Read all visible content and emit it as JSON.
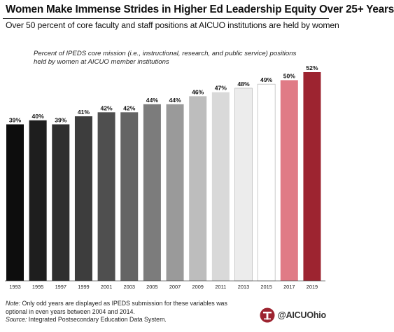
{
  "title": "Women Make Immense Strides in Higher Ed Leadership Equity Over 25+ Years",
  "subtitle": "Over 50 percent of core faculty and staff positions at AICUO institutions are held by women",
  "chart_data": {
    "type": "bar",
    "caption_lines": [
      "Percent of IPEDS core mission (i.e., instructional, research, and public service) positions",
      "held by women at AICUO member institutions"
    ],
    "categories": [
      "1993",
      "1995",
      "1997",
      "1999",
      "2001",
      "2003",
      "2005",
      "2007",
      "2009",
      "2011",
      "2013",
      "2015",
      "2017",
      "2019"
    ],
    "values": [
      39,
      40,
      39,
      41,
      42,
      42,
      44,
      44,
      46,
      47,
      48,
      49,
      50,
      52
    ],
    "value_labels": [
      "39%",
      "40%",
      "39%",
      "41%",
      "42%",
      "42%",
      "44%",
      "44%",
      "46%",
      "47%",
      "48%",
      "49%",
      "50%",
      "52%"
    ],
    "bar_colors": [
      "#0d0d0d",
      "#1e1e1e",
      "#2f2f2f",
      "#3d3d3d",
      "#4f4f4f",
      "#646464",
      "#7c7c7c",
      "#9a9a9a",
      "#bdbdbd",
      "#d9d9d9",
      "#ececec",
      "#ffffff",
      "#e07b86",
      "#9d2430"
    ],
    "bar_outline": "#b5b5b5",
    "ylim": [
      0,
      52
    ],
    "grid": false,
    "legend": false
  },
  "footnote": {
    "note_label": "Note:",
    "note_text": " Only odd years are displayed as IPEDS submission for these variables was optional in even years between 2004 and 2014.",
    "source_label": "Source:",
    "source_text": " Integrated Postsecondary Education Data System."
  },
  "brand": {
    "handle": "@AICUOhio",
    "icon": "aicuo-logo-icon",
    "accent": "#9d2430"
  }
}
